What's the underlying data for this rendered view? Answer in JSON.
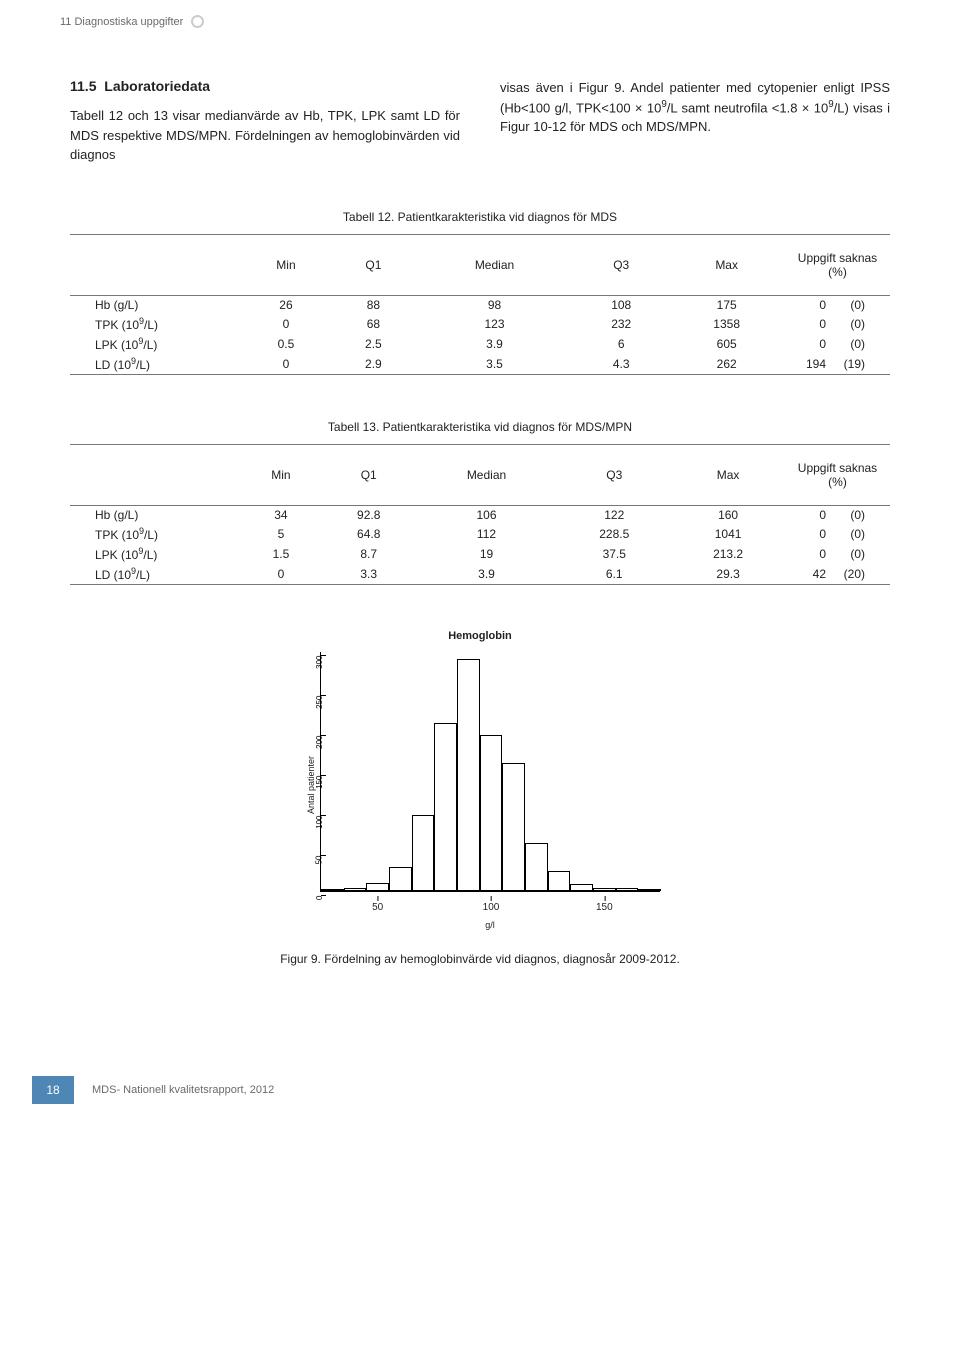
{
  "header_section": "11   Diagnostiska uppgifter",
  "section_number": "11.5",
  "section_title": "Laboratoriedata",
  "col_left": "Tabell 12 och 13 visar medianvärde av Hb, TPK, LPK samt LD för MDS respektive MDS/MPN. Fördelningen av hemoglobinvärden vid diagnos",
  "col_right_parts": [
    "visas även i Figur 9. Andel patienter med cytopenier enligt IPSS (Hb<100 g/l, TPK<100 × 10",
    "9",
    "/L samt neutrofila <1.8 × 10",
    "9",
    "/L) visas i Figur 10-12 för MDS och MDS/MPN."
  ],
  "tbl12": {
    "caption": "Tabell 12. Patientkarakteristika vid diagnos för MDS",
    "head": [
      "",
      "Min",
      "Q1",
      "Median",
      "Q3",
      "Max",
      "Uppgift saknas (%)"
    ],
    "rows": [
      {
        "lbl": [
          "Hb (g/L)"
        ],
        "vals": [
          "26",
          "88",
          "98",
          "108",
          "175",
          "0",
          "(0)"
        ]
      },
      {
        "lbl": [
          "TPK (10",
          "9",
          "/L)"
        ],
        "vals": [
          "0",
          "68",
          "123",
          "232",
          "1358",
          "0",
          "(0)"
        ]
      },
      {
        "lbl": [
          "LPK (10",
          "9",
          "/L)"
        ],
        "vals": [
          "0.5",
          "2.5",
          "3.9",
          "6",
          "605",
          "0",
          "(0)"
        ]
      },
      {
        "lbl": [
          "LD (10",
          "9",
          "/L)"
        ],
        "vals": [
          "0",
          "2.9",
          "3.5",
          "4.3",
          "262",
          "194",
          "(19)"
        ]
      }
    ]
  },
  "tbl13": {
    "caption": "Tabell 13. Patientkarakteristika vid diagnos för MDS/MPN",
    "head": [
      "",
      "Min",
      "Q1",
      "Median",
      "Q3",
      "Max",
      "Uppgift saknas (%)"
    ],
    "rows": [
      {
        "lbl": [
          "Hb (g/L)"
        ],
        "vals": [
          "34",
          "92.8",
          "106",
          "122",
          "160",
          "0",
          "(0)"
        ]
      },
      {
        "lbl": [
          "TPK (10",
          "9",
          "/L)"
        ],
        "vals": [
          "5",
          "64.8",
          "112",
          "228.5",
          "1041",
          "0",
          "(0)"
        ]
      },
      {
        "lbl": [
          "LPK (10",
          "9",
          "/L)"
        ],
        "vals": [
          "1.5",
          "8.7",
          "19",
          "37.5",
          "213.2",
          "0",
          "(0)"
        ]
      },
      {
        "lbl": [
          "LD (10",
          "9",
          "/L)"
        ],
        "vals": [
          "0",
          "3.3",
          "3.9",
          "6.1",
          "29.3",
          "42",
          "(20)"
        ]
      }
    ]
  },
  "histogram": {
    "type": "histogram",
    "title": "Hemoglobin",
    "xlabel": "g/l",
    "ylabel": "Antal patienter",
    "xlim": [
      25,
      175
    ],
    "ylim": [
      0,
      300
    ],
    "xticks": [
      50,
      100,
      150
    ],
    "yticks": [
      0,
      50,
      100,
      150,
      200,
      250,
      300
    ],
    "bin_width": 10,
    "bar_border_color": "#000000",
    "bar_fill_color": "#ffffff",
    "background_color": "#ffffff",
    "axis_color": "#000000",
    "title_fontsize": 11,
    "label_fontsize": 9,
    "tick_fontsize": 9,
    "bins": [
      {
        "x": 25,
        "count": 0
      },
      {
        "x": 35,
        "count": 2
      },
      {
        "x": 45,
        "count": 3
      },
      {
        "x": 55,
        "count": 10
      },
      {
        "x": 65,
        "count": 30
      },
      {
        "x": 75,
        "count": 95
      },
      {
        "x": 85,
        "count": 210
      },
      {
        "x": 95,
        "count": 290
      },
      {
        "x": 105,
        "count": 195
      },
      {
        "x": 115,
        "count": 160
      },
      {
        "x": 125,
        "count": 60
      },
      {
        "x": 135,
        "count": 25
      },
      {
        "x": 145,
        "count": 8
      },
      {
        "x": 155,
        "count": 3
      },
      {
        "x": 165,
        "count": 3
      },
      {
        "x": 175,
        "count": 2
      }
    ],
    "caption": "Figur 9. Fördelning av hemoglobinvärde vid diagnos, diagnosår 2009-2012."
  },
  "footer": {
    "page": "18",
    "text": "MDS- Nationell kvalitetsrapport, 2012"
  }
}
